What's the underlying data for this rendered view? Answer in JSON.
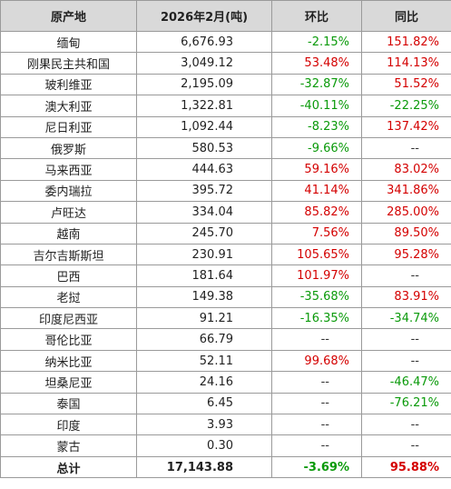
{
  "headers": [
    "原产地",
    "2026年2月(吨)",
    "环比",
    "同比"
  ],
  "colors": {
    "positive": "#d40000",
    "negative": "#0a9a0a",
    "header_bg": "#d9d9d9"
  },
  "rows": [
    {
      "origin": "缅甸",
      "tons": "6,676.93",
      "mom": "-2.15%",
      "yoy": "151.82%"
    },
    {
      "origin": "刚果民主共和国",
      "tons": "3,049.12",
      "mom": "53.48%",
      "yoy": "114.13%"
    },
    {
      "origin": "玻利维亚",
      "tons": "2,195.09",
      "mom": "-32.87%",
      "yoy": "51.52%"
    },
    {
      "origin": "澳大利亚",
      "tons": "1,322.81",
      "mom": "-40.11%",
      "yoy": "-22.25%"
    },
    {
      "origin": "尼日利亚",
      "tons": "1,092.44",
      "mom": "-8.23%",
      "yoy": "137.42%"
    },
    {
      "origin": "俄罗斯",
      "tons": "580.53",
      "mom": "-9.66%",
      "yoy": "--"
    },
    {
      "origin": "马来西亚",
      "tons": "444.63",
      "mom": "59.16%",
      "yoy": "83.02%"
    },
    {
      "origin": "委内瑞拉",
      "tons": "395.72",
      "mom": "41.14%",
      "yoy": "341.86%"
    },
    {
      "origin": "卢旺达",
      "tons": "334.04",
      "mom": "85.82%",
      "yoy": "285.00%"
    },
    {
      "origin": "越南",
      "tons": "245.70",
      "mom": "7.56%",
      "yoy": "89.50%"
    },
    {
      "origin": "吉尔吉斯斯坦",
      "tons": "230.91",
      "mom": "105.65%",
      "yoy": "95.28%"
    },
    {
      "origin": "巴西",
      "tons": "181.64",
      "mom": "101.97%",
      "yoy": "--"
    },
    {
      "origin": "老挝",
      "tons": "149.38",
      "mom": "-35.68%",
      "yoy": "83.91%"
    },
    {
      "origin": "印度尼西亚",
      "tons": "91.21",
      "mom": "-16.35%",
      "yoy": "-34.74%"
    },
    {
      "origin": "哥伦比亚",
      "tons": "66.79",
      "mom": "--",
      "yoy": "--"
    },
    {
      "origin": "纳米比亚",
      "tons": "52.11",
      "mom": "99.68%",
      "yoy": "--"
    },
    {
      "origin": "坦桑尼亚",
      "tons": "24.16",
      "mom": "--",
      "yoy": "-46.47%"
    },
    {
      "origin": "泰国",
      "tons": "6.45",
      "mom": "--",
      "yoy": "-76.21%"
    },
    {
      "origin": "印度",
      "tons": "3.93",
      "mom": "--",
      "yoy": "--"
    },
    {
      "origin": "蒙古",
      "tons": "0.30",
      "mom": "--",
      "yoy": "--"
    }
  ],
  "total": {
    "origin": "总计",
    "tons": "17,143.88",
    "mom": "-3.69%",
    "yoy": "95.88%"
  }
}
